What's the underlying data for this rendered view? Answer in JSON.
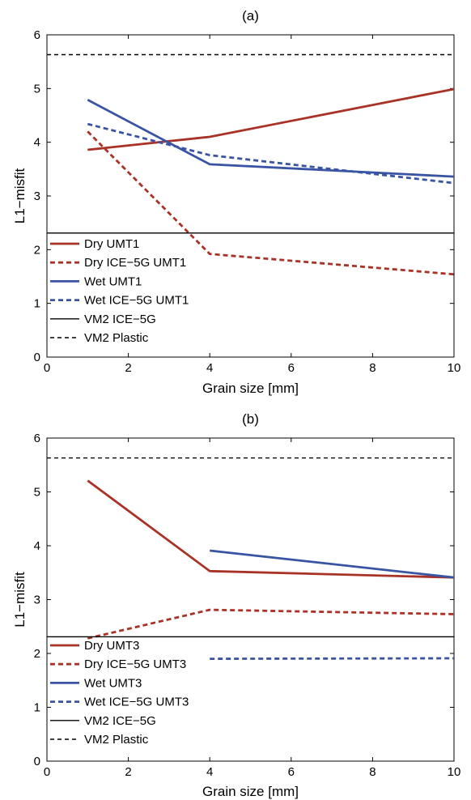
{
  "chart_data": [
    {
      "type": "line",
      "title": "(a)",
      "xlabel": "Grain size [mm]",
      "ylabel": "L1−misfit",
      "xlim": [
        0,
        10
      ],
      "ylim": [
        0,
        6
      ],
      "xticks": [
        "0",
        "2",
        "4",
        "6",
        "8",
        "10"
      ],
      "yticks": [
        "0",
        "1",
        "2",
        "3",
        "4",
        "5",
        "6"
      ],
      "grid": false,
      "legend": "lower-left",
      "series": [
        {
          "name": "Dry UMT1",
          "color": "#a93226",
          "style": "solid",
          "x": [
            1,
            4,
            10
          ],
          "y": [
            3.86,
            4.1,
            4.99
          ]
        },
        {
          "name": "Dry ICE−5G UMT1",
          "color": "#a93226",
          "style": "dashed",
          "x": [
            1,
            4,
            10
          ],
          "y": [
            4.2,
            1.92,
            1.54
          ]
        },
        {
          "name": "Wet UMT1",
          "color": "#3a54a4",
          "style": "solid",
          "x": [
            1,
            4,
            10
          ],
          "y": [
            4.79,
            3.59,
            3.36
          ]
        },
        {
          "name": "Wet ICE−5G UMT1",
          "color": "#3a54a4",
          "style": "dashed",
          "x": [
            1,
            4,
            10
          ],
          "y": [
            4.34,
            3.76,
            3.24
          ]
        },
        {
          "name": "VM2 ICE−5G",
          "color": "#000000",
          "style": "solid",
          "x": [
            0,
            10
          ],
          "y": [
            2.31,
            2.31
          ]
        },
        {
          "name": "VM2 Plastic",
          "color": "#000000",
          "style": "dashed",
          "x": [
            0,
            10
          ],
          "y": [
            5.63,
            5.63
          ]
        }
      ]
    },
    {
      "type": "line",
      "title": "(b)",
      "xlabel": "Grain size [mm]",
      "ylabel": "L1−misfit",
      "xlim": [
        0,
        10
      ],
      "ylim": [
        0,
        6
      ],
      "xticks": [
        "0",
        "2",
        "4",
        "6",
        "8",
        "10"
      ],
      "yticks": [
        "0",
        "1",
        "2",
        "3",
        "4",
        "5",
        "6"
      ],
      "grid": false,
      "legend": "lower-left",
      "series": [
        {
          "name": "Dry UMT3",
          "color": "#a93226",
          "style": "solid",
          "x": [
            1,
            4,
            10
          ],
          "y": [
            5.21,
            3.53,
            3.41
          ]
        },
        {
          "name": "Dry ICE−5G UMT3",
          "color": "#a93226",
          "style": "dashed",
          "x": [
            1,
            4,
            10
          ],
          "y": [
            2.28,
            2.81,
            2.73
          ]
        },
        {
          "name": "Wet UMT3",
          "color": "#3a54a4",
          "style": "solid",
          "x": [
            4,
            10
          ],
          "y": [
            3.91,
            3.41
          ]
        },
        {
          "name": "Wet ICE−5G UMT3",
          "color": "#3a54a4",
          "style": "dashed",
          "x": [
            4,
            10
          ],
          "y": [
            1.9,
            1.91
          ]
        },
        {
          "name": "VM2 ICE−5G",
          "color": "#000000",
          "style": "solid",
          "x": [
            0,
            10
          ],
          "y": [
            2.31,
            2.31
          ]
        },
        {
          "name": "VM2 Plastic",
          "color": "#000000",
          "style": "dashed",
          "x": [
            0,
            10
          ],
          "y": [
            5.63,
            5.63
          ]
        }
      ]
    }
  ]
}
